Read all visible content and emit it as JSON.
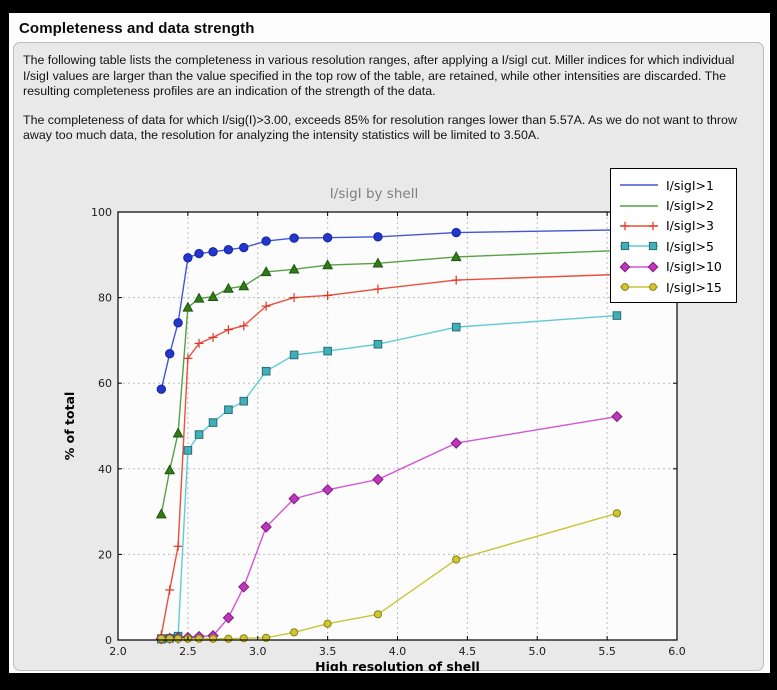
{
  "header": {
    "title": "Completeness and data strength"
  },
  "paragraphs": {
    "p1": "The following table lists the completeness in various resolution ranges, after applying a I/sigI cut. Miller indices for which individual I/sigI values are larger than the value specified in the top row of the table, are retained, while other intensities are discarded. The resulting completeness profiles are an indication of the strength of the data.",
    "p2": "The completeness of data for which I/sig(I)>3.00, exceeds  85% for resolution ranges lower than 5.57A. As we do not want to throw away too much data, the resolution for analyzing the intensity statistics will be limited to 3.50A."
  },
  "chart_data": {
    "type": "line",
    "title": "I/sigI by shell",
    "xlabel": "High resolution of shell",
    "ylabel": "% of total",
    "xlim": [
      2.0,
      6.0
    ],
    "ylim": [
      0,
      100
    ],
    "xticks": [
      "2.0",
      "2.5",
      "3.0",
      "3.5",
      "4.0",
      "4.5",
      "5.0",
      "5.5",
      "6.0"
    ],
    "yticks": [
      0,
      20,
      40,
      60,
      80,
      100
    ],
    "grid": true,
    "grid_style": "dashed",
    "legend_position": "top-right",
    "plot_bg": "#fcfcfc",
    "figure_bg": "#e9e9e9",
    "x": [
      2.31,
      2.37,
      2.43,
      2.5,
      2.58,
      2.68,
      2.79,
      2.9,
      3.06,
      3.26,
      3.5,
      3.86,
      4.42,
      5.57
    ],
    "series": [
      {
        "name": "I/sigI>1",
        "color": "#4355d4",
        "marker": "circle",
        "marker_fill": "#2337cc",
        "marker_edge": "#16249c",
        "legend_markers": false,
        "values": [
          58.6,
          66.9,
          74.1,
          89.3,
          90.3,
          90.7,
          91.2,
          91.7,
          93.2,
          93.9,
          94.0,
          94.2,
          95.2,
          95.8
        ]
      },
      {
        "name": "I/sigI>2",
        "color": "#55a245",
        "marker": "triangle",
        "marker_fill": "#2f7d17",
        "marker_edge": "#1d5410",
        "legend_markers": false,
        "values": [
          29.4,
          39.7,
          48.3,
          77.7,
          79.8,
          80.2,
          82.1,
          82.7,
          86.0,
          86.6,
          87.6,
          88.0,
          89.5,
          91.0
        ]
      },
      {
        "name": "I/sigI>3",
        "color": "#e8503c",
        "marker": "plus",
        "marker_fill": "#e23527",
        "marker_edge": "#e23527",
        "legend_markers": true,
        "values": [
          1.2,
          11.7,
          21.9,
          65.8,
          69.3,
          70.7,
          72.5,
          73.4,
          78.0,
          80.0,
          80.5,
          82.0,
          84.1,
          85.4
        ]
      },
      {
        "name": "I/sigI>5",
        "color": "#5eccd5",
        "marker": "square",
        "marker_fill": "#3fb0ba",
        "marker_edge": "#2a6e74",
        "legend_markers": true,
        "values": [
          0.2,
          0.4,
          0.9,
          44.3,
          48.0,
          50.8,
          53.8,
          55.8,
          62.8,
          66.6,
          67.5,
          69.1,
          73.1,
          75.8
        ]
      },
      {
        "name": "I/sigI>10",
        "color": "#d355d3",
        "marker": "diamond",
        "marker_fill": "#bf35bf",
        "marker_edge": "#7c1f7c",
        "legend_markers": true,
        "values": [
          0.3,
          0.4,
          0.5,
          0.6,
          0.8,
          1.0,
          5.2,
          12.4,
          26.4,
          33.0,
          35.1,
          37.5,
          46.0,
          52.2
        ]
      },
      {
        "name": "I/sigI>15",
        "color": "#cbc333",
        "marker": "circle-small",
        "marker_fill": "#d2c52e",
        "marker_edge": "#84801c",
        "legend_markers": true,
        "values": [
          0.3,
          0.3,
          0.3,
          0.3,
          0.3,
          0.3,
          0.3,
          0.4,
          0.5,
          1.8,
          3.8,
          6.0,
          18.8,
          29.6
        ]
      }
    ]
  }
}
